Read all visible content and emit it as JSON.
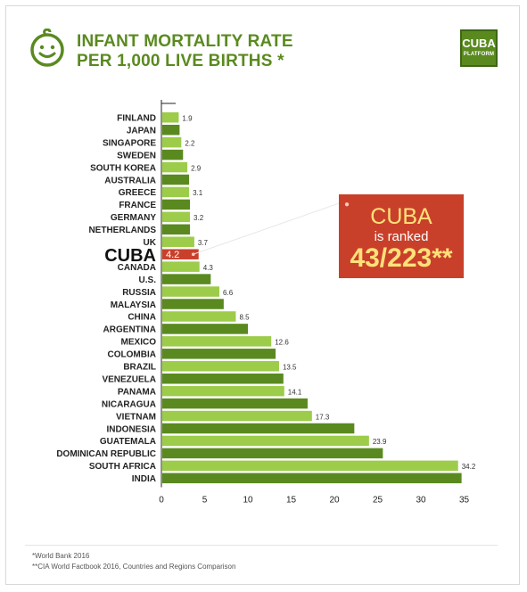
{
  "header": {
    "title_line1": "INFANT MORTALITY RATE",
    "title_line2": "PER 1,000 LIVE BIRTHS *",
    "logo_line1": "CUBA",
    "logo_line2": "PLATFORM"
  },
  "callout": {
    "line1": "CUBA",
    "line2": "is ranked",
    "line3": "43/223**"
  },
  "footnotes": [
    "*World Bank 2016",
    "**CIA World Factbook 2016, Countries and Regions Comparison"
  ],
  "colors": {
    "light_green": "#9ccc4a",
    "dark_green": "#5a8a1f",
    "highlight_red": "#c9402a",
    "title_green": "#5a8a1f"
  },
  "chart_data": {
    "type": "bar",
    "orientation": "horizontal",
    "title": "INFANT MORTALITY RATE PER 1,000 LIVE BIRTHS *",
    "xlim": [
      0,
      35
    ],
    "xticks": [
      0,
      5,
      10,
      15,
      20,
      25,
      30,
      35
    ],
    "highlight": "CUBA",
    "categories": [
      "FINLAND",
      "JAPAN",
      "SINGAPORE",
      "SWEDEN",
      "SOUTH KOREA",
      "AUSTRALIA",
      "GREECE",
      "FRANCE",
      "GERMANY",
      "NETHERLANDS",
      "UK",
      "CUBA",
      "CANADA",
      "U.S.",
      "RUSSIA",
      "MALAYSIA",
      "CHINA",
      "ARGENTINA",
      "MEXICO",
      "COLOMBIA",
      "BRAZIL",
      "VENEZUELA",
      "PANAMA",
      "NICARAGUA",
      "VIETNAM",
      "INDONESIA",
      "GUATEMALA",
      "DOMINICAN REPUBLIC",
      "SOUTH AFRICA",
      "INDIA"
    ],
    "values": [
      1.9,
      2.0,
      2.2,
      2.4,
      2.9,
      3.1,
      3.1,
      3.2,
      3.2,
      3.2,
      3.7,
      4.2,
      4.3,
      5.6,
      6.6,
      7.1,
      8.5,
      9.9,
      12.6,
      13.1,
      13.5,
      14.0,
      14.1,
      16.8,
      17.3,
      22.2,
      23.9,
      25.5,
      34.2,
      34.6
    ],
    "data_labels": [
      "1.9",
      "",
      "2.2",
      "",
      "2.9",
      "",
      "3.1",
      "",
      "3.2",
      "",
      "3.7",
      "4.2",
      "4.3",
      "",
      "6.6",
      "",
      "8.5",
      "",
      "12.6",
      "",
      "13.5",
      "",
      "14.1",
      "",
      "17.3",
      "",
      "23.9",
      "",
      "34.2",
      ""
    ]
  }
}
